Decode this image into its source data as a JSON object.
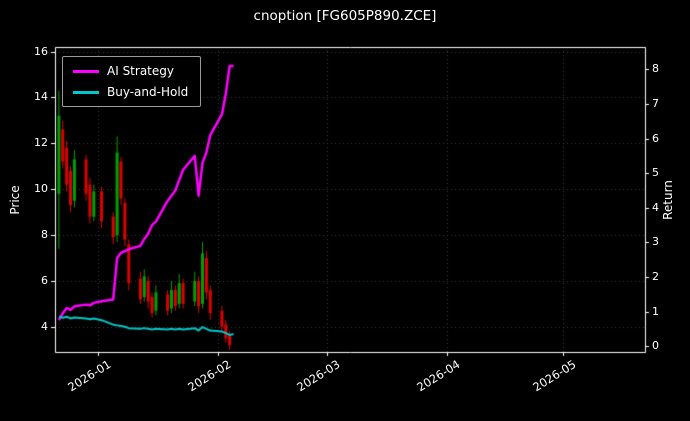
{
  "title": "cnoption [FG605P890.ZCE]",
  "colors": {
    "background": "#000000",
    "text": "#ffffff",
    "grid": "#3a3a3a",
    "plot_border": "#ffffff",
    "candle_up": "#00a000",
    "candle_down": "#dd0000",
    "ai_strategy": "#ff00ff",
    "buy_and_hold": "#00c8c8"
  },
  "chart_data": {
    "type": "candlestick+line",
    "title": "cnoption [FG605P890.ZCE]",
    "legend_position": "upper-left",
    "grid": {
      "show": true,
      "style": "dotted"
    },
    "x_range": [
      "2025-12-21",
      "2026-05-22"
    ],
    "x_ticks": [
      "2026-01",
      "2026-02",
      "2026-03",
      "2026-04",
      "2026-05"
    ],
    "price_axis": {
      "label": "Price",
      "ticks": [
        4,
        6,
        8,
        10,
        12,
        14,
        16
      ],
      "range": [
        2.9,
        16.2
      ]
    },
    "return_axis": {
      "label": "Return",
      "ticks": [
        0,
        1,
        2,
        3,
        4,
        5,
        6,
        7,
        8
      ],
      "range": [
        -0.17,
        8.65
      ]
    },
    "candles": [
      {
        "date": "2025-12-22",
        "open": 9.8,
        "high": 14.3,
        "low": 7.4,
        "close": 13.2
      },
      {
        "date": "2025-12-23",
        "open": 12.6,
        "high": 13.0,
        "low": 10.9,
        "close": 11.2
      },
      {
        "date": "2025-12-24",
        "open": 11.8,
        "high": 12.1,
        "low": 9.9,
        "close": 10.2
      },
      {
        "date": "2025-12-25",
        "open": 10.8,
        "high": 11.0,
        "low": 9.0,
        "close": 9.3
      },
      {
        "date": "2025-12-26",
        "open": 9.5,
        "high": 11.7,
        "low": 9.2,
        "close": 11.3
      },
      {
        "date": "2025-12-29",
        "open": 11.3,
        "high": 11.5,
        "low": 9.5,
        "close": 9.8
      },
      {
        "date": "2025-12-30",
        "open": 10.2,
        "high": 10.5,
        "low": 8.5,
        "close": 8.8
      },
      {
        "date": "2025-12-31",
        "open": 8.8,
        "high": 10.2,
        "low": 8.6,
        "close": 9.9
      },
      {
        "date": "2026-01-02",
        "open": 9.9,
        "high": 10.1,
        "low": 8.3,
        "close": 8.6
      },
      {
        "date": "2026-01-05",
        "open": 8.8,
        "high": 9.0,
        "low": 7.6,
        "close": 7.9
      },
      {
        "date": "2026-01-06",
        "open": 8.0,
        "high": 12.3,
        "low": 7.7,
        "close": 11.6
      },
      {
        "date": "2026-01-07",
        "open": 11.2,
        "high": 11.4,
        "low": 9.3,
        "close": 9.6
      },
      {
        "date": "2026-01-08",
        "open": 9.4,
        "high": 9.6,
        "low": 7.5,
        "close": 7.8
      },
      {
        "date": "2026-01-09",
        "open": 7.6,
        "high": 7.8,
        "low": 5.6,
        "close": 5.9
      },
      {
        "date": "2026-01-12",
        "open": 6.1,
        "high": 6.4,
        "low": 5.0,
        "close": 5.2
      },
      {
        "date": "2026-01-13",
        "open": 5.3,
        "high": 6.5,
        "low": 5.1,
        "close": 6.2
      },
      {
        "date": "2026-01-14",
        "open": 6.0,
        "high": 6.2,
        "low": 4.8,
        "close": 5.1
      },
      {
        "date": "2026-01-15",
        "open": 5.3,
        "high": 5.5,
        "low": 4.4,
        "close": 4.6
      },
      {
        "date": "2026-01-16",
        "open": 4.7,
        "high": 5.8,
        "low": 4.5,
        "close": 5.5
      },
      {
        "date": "2026-01-19",
        "open": 5.4,
        "high": 5.6,
        "low": 4.5,
        "close": 4.7
      },
      {
        "date": "2026-01-20",
        "open": 4.8,
        "high": 6.0,
        "low": 4.6,
        "close": 5.6
      },
      {
        "date": "2026-01-21",
        "open": 5.6,
        "high": 5.8,
        "low": 4.7,
        "close": 4.9
      },
      {
        "date": "2026-01-22",
        "open": 5.0,
        "high": 6.3,
        "low": 4.8,
        "close": 5.9
      },
      {
        "date": "2026-01-23",
        "open": 5.9,
        "high": 6.1,
        "low": 4.8,
        "close": 5.0
      },
      {
        "date": "2026-01-26",
        "open": 5.1,
        "high": 6.4,
        "low": 4.9,
        "close": 6.0
      },
      {
        "date": "2026-01-27",
        "open": 6.0,
        "high": 6.2,
        "low": 4.6,
        "close": 4.9
      },
      {
        "date": "2026-01-28",
        "open": 5.0,
        "high": 7.7,
        "low": 4.8,
        "close": 7.2
      },
      {
        "date": "2026-01-29",
        "open": 7.0,
        "high": 7.3,
        "low": 5.2,
        "close": 5.5
      },
      {
        "date": "2026-01-30",
        "open": 5.6,
        "high": 5.8,
        "low": 4.3,
        "close": 4.6
      },
      {
        "date": "2026-02-02",
        "open": 4.7,
        "high": 4.9,
        "low": 3.8,
        "close": 4.0
      },
      {
        "date": "2026-02-03",
        "open": 4.1,
        "high": 4.3,
        "low": 3.3,
        "close": 3.5
      },
      {
        "date": "2026-02-04",
        "open": 3.6,
        "high": 3.8,
        "low": 3.0,
        "close": 3.2
      }
    ],
    "series": [
      {
        "name": "AI Strategy",
        "axis": "return",
        "color": "#ff00ff",
        "width": 2.5,
        "points": [
          [
            "2025-12-22",
            0.75
          ],
          [
            "2025-12-23",
            0.95
          ],
          [
            "2025-12-24",
            1.1
          ],
          [
            "2025-12-25",
            1.05
          ],
          [
            "2025-12-26",
            1.15
          ],
          [
            "2025-12-29",
            1.2
          ],
          [
            "2025-12-30",
            1.18
          ],
          [
            "2025-12-31",
            1.25
          ],
          [
            "2026-01-02",
            1.3
          ],
          [
            "2026-01-05",
            1.35
          ],
          [
            "2026-01-06",
            2.55
          ],
          [
            "2026-01-07",
            2.7
          ],
          [
            "2026-01-08",
            2.75
          ],
          [
            "2026-01-09",
            2.8
          ],
          [
            "2026-01-12",
            2.9
          ],
          [
            "2026-01-13",
            3.1
          ],
          [
            "2026-01-14",
            3.25
          ],
          [
            "2026-01-15",
            3.5
          ],
          [
            "2026-01-16",
            3.6
          ],
          [
            "2026-01-19",
            4.2
          ],
          [
            "2026-01-20",
            4.35
          ],
          [
            "2026-01-21",
            4.5
          ],
          [
            "2026-01-22",
            4.8
          ],
          [
            "2026-01-23",
            5.1
          ],
          [
            "2026-01-26",
            5.5
          ],
          [
            "2026-01-27",
            4.35
          ],
          [
            "2026-01-28",
            5.3
          ],
          [
            "2026-01-29",
            5.6
          ],
          [
            "2026-01-30",
            6.1
          ],
          [
            "2026-02-02",
            6.7
          ],
          [
            "2026-02-03",
            7.3
          ],
          [
            "2026-02-04",
            8.1
          ],
          [
            "2026-02-05",
            8.1
          ]
        ]
      },
      {
        "name": "Buy-and-Hold",
        "axis": "return",
        "color": "#00c8c8",
        "width": 2,
        "points": [
          [
            "2025-12-22",
            0.85
          ],
          [
            "2025-12-23",
            0.82
          ],
          [
            "2025-12-24",
            0.85
          ],
          [
            "2025-12-25",
            0.8
          ],
          [
            "2025-12-26",
            0.83
          ],
          [
            "2025-12-29",
            0.8
          ],
          [
            "2025-12-30",
            0.78
          ],
          [
            "2025-12-31",
            0.8
          ],
          [
            "2026-01-02",
            0.75
          ],
          [
            "2026-01-05",
            0.62
          ],
          [
            "2026-01-06",
            0.6
          ],
          [
            "2026-01-07",
            0.58
          ],
          [
            "2026-01-08",
            0.56
          ],
          [
            "2026-01-09",
            0.52
          ],
          [
            "2026-01-12",
            0.5
          ],
          [
            "2026-01-13",
            0.52
          ],
          [
            "2026-01-14",
            0.5
          ],
          [
            "2026-01-15",
            0.48
          ],
          [
            "2026-01-16",
            0.5
          ],
          [
            "2026-01-19",
            0.48
          ],
          [
            "2026-01-20",
            0.5
          ],
          [
            "2026-01-21",
            0.48
          ],
          [
            "2026-01-22",
            0.5
          ],
          [
            "2026-01-23",
            0.48
          ],
          [
            "2026-01-26",
            0.52
          ],
          [
            "2026-01-27",
            0.45
          ],
          [
            "2026-01-28",
            0.55
          ],
          [
            "2026-01-29",
            0.5
          ],
          [
            "2026-01-30",
            0.45
          ],
          [
            "2026-02-02",
            0.42
          ],
          [
            "2026-02-03",
            0.38
          ],
          [
            "2026-02-04",
            0.32
          ],
          [
            "2026-02-05",
            0.35
          ]
        ]
      }
    ]
  }
}
